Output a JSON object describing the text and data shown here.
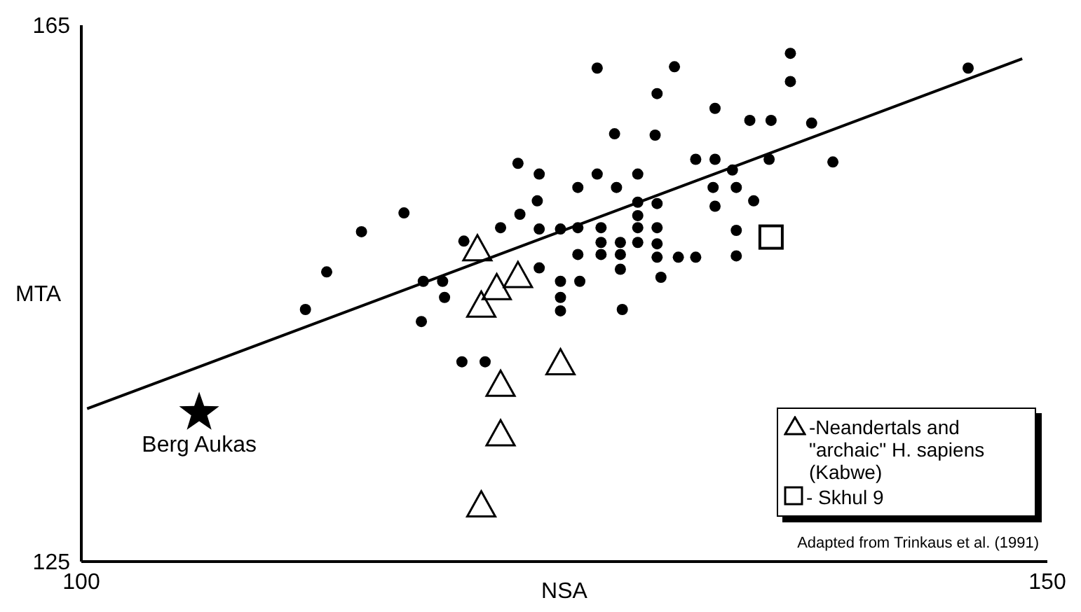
{
  "chart_data": {
    "type": "scatter",
    "xlabel": "NSA",
    "ylabel": "MTA",
    "xlim": [
      100,
      150
    ],
    "ylim": [
      125,
      165
    ],
    "xticks": [
      100,
      150
    ],
    "yticks": [
      125,
      165
    ],
    "legend": "bottom right",
    "annotations": [
      "Adapted from Trinkaus et al. (1991)"
    ],
    "series": [
      {
        "marker": "circle",
        "color": "#000000",
        "x": [
          112.7,
          114.5,
          116.7,
          119.8,
          121.7,
          122.7,
          122.6,
          123.7,
          123.6,
          123.7,
          123.7,
          117.7,
          118.7,
          118.8,
          111.6,
          117.6,
          119.7,
          120.9,
          126.7,
          130.7,
          136.7,
          136.7,
          145.9,
          129.8,
          132.8,
          127.6,
          129.7,
          134.6,
          135.7,
          137.8,
          131.8,
          132.8,
          133.7,
          135.6,
          138.9,
          126.7,
          128.8,
          125.7,
          127.7,
          132.7,
          133.9,
          128.8,
          129.8,
          132.8,
          134.8,
          128.8,
          124.8,
          125.7,
          126.9,
          128.8,
          129.8,
          133.9,
          126.9,
          127.9,
          128.8,
          129.8,
          125.7,
          126.9,
          127.9,
          129.8,
          130.9,
          131.8,
          133.9,
          127.9,
          130.0,
          124.8,
          125.8,
          124.8,
          124.8,
          128.0
        ],
        "values": [
          146.6,
          149.6,
          151.0,
          148.9,
          149.9,
          150.9,
          154.7,
          153.9,
          151.9,
          149.8,
          146.9,
          145.9,
          145.9,
          144.7,
          143.8,
          142.9,
          139.9,
          139.9,
          161.8,
          161.9,
          162.9,
          160.8,
          161.8,
          159.9,
          158.8,
          156.9,
          156.8,
          157.9,
          157.9,
          157.7,
          155.0,
          155.0,
          154.2,
          155.0,
          154.8,
          153.9,
          153.9,
          152.9,
          152.9,
          152.9,
          152.9,
          151.8,
          151.7,
          151.5,
          151.9,
          150.8,
          149.8,
          149.9,
          149.9,
          149.9,
          149.9,
          149.7,
          148.8,
          148.8,
          148.8,
          148.7,
          147.9,
          147.9,
          147.9,
          147.7,
          147.7,
          147.7,
          147.8,
          146.8,
          146.2,
          145.9,
          145.9,
          144.7,
          143.7,
          143.8
        ]
      },
      {
        "marker": "triangle",
        "name": "-Neandertals and \"archaic\" H. sapiens (Kabwe)",
        "color": "#000000",
        "x": [
          120.5,
          122.6,
          121.5,
          120.7,
          121.7,
          121.7,
          120.7,
          124.8
        ],
        "values": [
          148.3,
          146.3,
          145.4,
          144.1,
          138.2,
          134.5,
          129.2,
          139.8
        ]
      },
      {
        "marker": "square",
        "name": "- Skhul 9",
        "color": "#000000",
        "x": [
          135.7
        ],
        "values": [
          149.2
        ]
      },
      {
        "marker": "star",
        "name": "Berg Aukas",
        "color": "#000000",
        "x": [
          106.1
        ],
        "values": [
          136.1
        ]
      },
      {
        "type": "line",
        "color": "#000000",
        "line_style": "solid",
        "x": [
          100.3,
          148.7
        ],
        "values": [
          136.4,
          162.5
        ]
      }
    ]
  }
}
